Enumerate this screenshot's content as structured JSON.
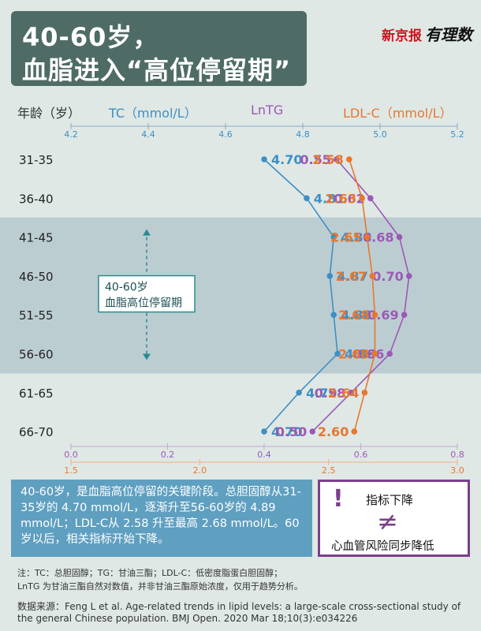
{
  "title": {
    "line1": "40-60岁，",
    "line2": "血脂进入“高位停留期”"
  },
  "logo": {
    "brand": "新京报",
    "sub": "有理数"
  },
  "headers": {
    "age": "年龄（岁）",
    "tc": "TC（mmol/L）",
    "lntg": "LnTG",
    "ldl": "LDL-C（mmol/L）"
  },
  "colors": {
    "tc": "#3d8fc4",
    "lntg": "#9b59b6",
    "ldl": "#e8772e",
    "band": "#bccdd2",
    "dark": "#4f6b66"
  },
  "chart_data": {
    "type": "line",
    "categories": [
      "31-35",
      "36-40",
      "41-45",
      "46-50",
      "51-55",
      "56-60",
      "61-65",
      "66-70"
    ],
    "series": [
      {
        "name": "TC",
        "values": [
          4.7,
          4.81,
          4.88,
          4.87,
          4.88,
          4.89,
          4.79,
          4.7
        ]
      },
      {
        "name": "LnTG",
        "values": [
          0.55,
          0.62,
          0.68,
          0.7,
          0.69,
          0.66,
          0.58,
          0.5
        ]
      },
      {
        "name": "LDL-C",
        "values": [
          2.58,
          2.63,
          2.65,
          2.67,
          2.68,
          2.68,
          2.64,
          2.6
        ]
      }
    ],
    "axes": {
      "tc": {
        "range": [
          4.2,
          5.2
        ],
        "ticks": [
          "4.2",
          "4.4",
          "4.6",
          "4.8",
          "5.0",
          "5.2"
        ],
        "position": "top"
      },
      "lntg": {
        "range": [
          0.0,
          0.8
        ],
        "ticks": [
          "0.0",
          "0.2",
          "0.4",
          "0.6",
          "0.8"
        ],
        "position": "bottom"
      },
      "ldl": {
        "range": [
          1.5,
          3.0
        ],
        "ticks": [
          "1.5",
          "2.0",
          "2.5",
          "3.0"
        ],
        "position": "bottom"
      }
    },
    "highlight": {
      "label_line1": "40-60岁",
      "label_line2": "血脂高位停留期",
      "categories": [
        "41-45",
        "56-60"
      ]
    }
  },
  "summary": "40-60岁，是血脂高位停留的关键阶段。总胆固醇从31-35岁的 4.70 mmol/L，逐渐升至56-60岁的 4.89 mmol/L；LDL-C从 2.58 升至最高 2.68 mmol/L。60岁以后，相关指标开始下降。",
  "legend_box": {
    "mark": "!",
    "trend": "指标下降",
    "neq": "≠",
    "risk": "心血管风险同步降低"
  },
  "notes": {
    "line1": "注：TC：总胆固醇；TG：甘油三酯；LDL-C：低密度脂蛋白胆固醇；",
    "line2": "LnTG 为甘油三酯自然对数值，并非甘油三酯原始浓度，仅用于趋势分析。"
  },
  "source": "数据来源：Feng L et al. Age-related trends in lipid levels: a large-scale cross-sectional study of the general Chinese population. BMJ Open. 2020 Mar 18;10(3):e034226"
}
